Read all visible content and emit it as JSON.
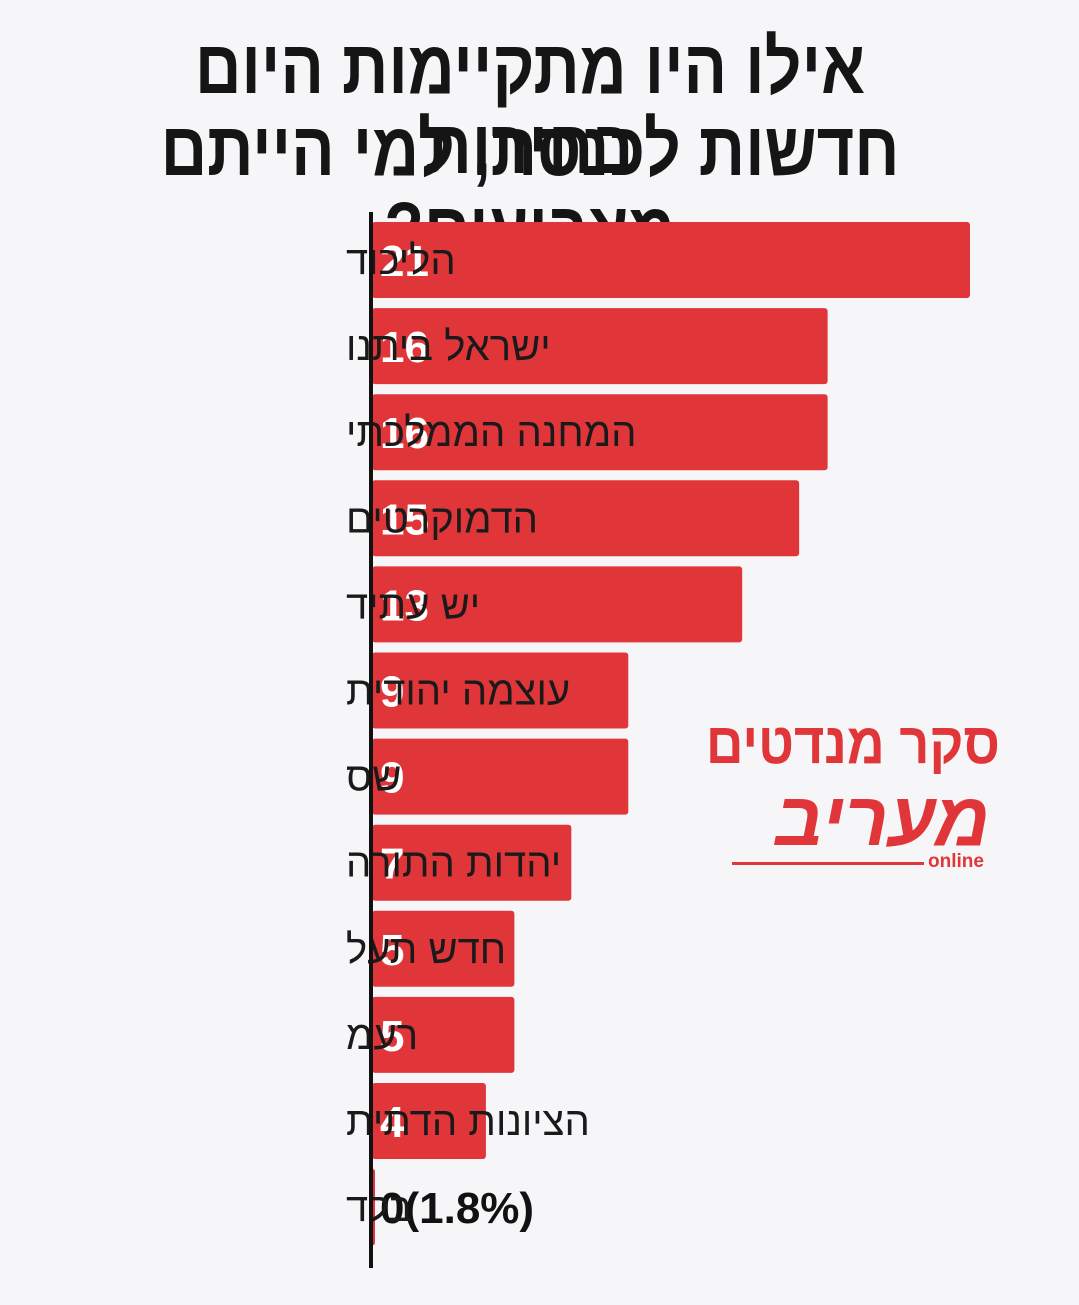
{
  "title": {
    "line1": "אילו היו מתקיימות היום בחירות",
    "line2": "חדשות לכנסת, למי הייתם מצביעים?"
  },
  "logo": {
    "survey_label": "סקר מנדטים",
    "brand_name": "מעריב",
    "brand_suffix": "online"
  },
  "colors": {
    "bar": "#e0363a",
    "axis": "#111111",
    "background": "#f6f6f8"
  },
  "chart_data": {
    "type": "bar",
    "orientation": "horizontal",
    "title": "אילו היו מתקיימות היום בחירות חדשות לכנסת, למי הייתם מצביעים?",
    "categories": [
      "הליכוד",
      "ישראל ביתנו",
      "המחנה הממלכתי",
      "הדמוקרטים",
      "יש עתיד",
      "עוצמה יהודית",
      "שס",
      "יהדות התורה",
      "חדש תעל",
      "רעמ",
      "הציונות הדתית",
      "בלד"
    ],
    "values": [
      21,
      16,
      16,
      15,
      13,
      9,
      9,
      7,
      5,
      5,
      4,
      0
    ],
    "value_labels": [
      "21",
      "16",
      "16",
      "15",
      "13",
      "9",
      "9",
      "7",
      "5",
      "5",
      "4",
      "0(1.8%)"
    ],
    "xlabel": "",
    "ylabel": "",
    "xlim": [
      0,
      21
    ],
    "grid": false
  }
}
